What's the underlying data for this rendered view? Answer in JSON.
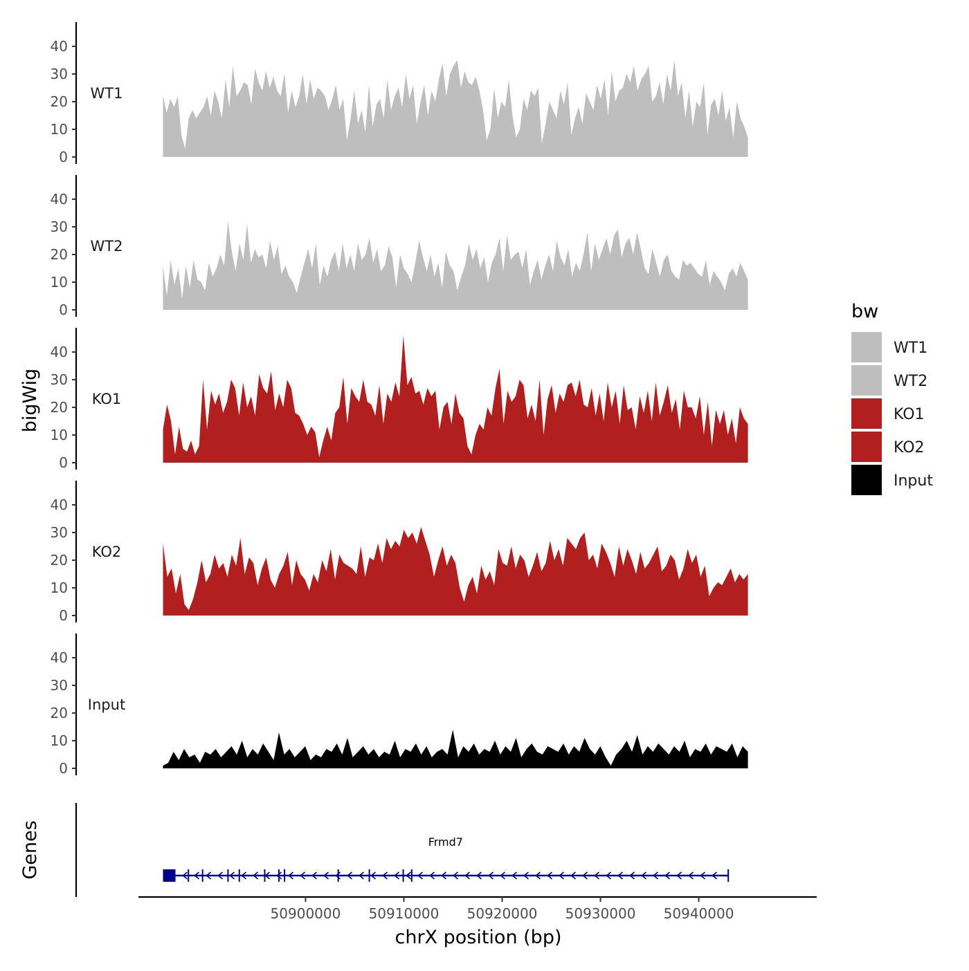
{
  "chart_data": {
    "type": "area",
    "chromosome": "chrX",
    "xlabel": "chrX position (bp)",
    "ylabel": "bigWig",
    "gene_panel_label": "Genes",
    "xlim": [
      50883000,
      50952000
    ],
    "x_ticks": [
      50900000,
      50910000,
      50920000,
      50930000,
      50940000
    ],
    "x_tick_labels": [
      "50900000",
      "50910000",
      "50920000",
      "50930000",
      "50940000"
    ],
    "ylim": [
      0,
      50
    ],
    "y_ticks": [
      0,
      10,
      20,
      30,
      40
    ],
    "y_tick_labels": [
      "0",
      "10",
      "20",
      "30",
      "40"
    ],
    "legend": {
      "title": "bw",
      "position": "right",
      "entries": [
        {
          "label": "WT1",
          "color": "#BEBEBE"
        },
        {
          "label": "WT2",
          "color": "#BEBEBE"
        },
        {
          "label": "KO1",
          "color": "#B21F1F"
        },
        {
          "label": "KO2",
          "color": "#B21F1F"
        },
        {
          "label": "Input",
          "color": "#000000"
        }
      ]
    },
    "track_x_range": [
      50885500,
      50945000
    ],
    "series": [
      {
        "name": "WT1",
        "color": "#BEBEBE",
        "values": [
          22,
          16,
          21,
          18,
          22,
          8,
          3,
          14,
          17,
          14,
          16,
          18,
          22,
          15,
          24,
          20,
          14,
          28,
          18,
          33,
          22,
          24,
          27,
          26,
          19,
          32,
          27,
          24,
          31,
          25,
          29,
          24,
          22,
          30,
          16,
          24,
          18,
          22,
          30,
          19,
          28,
          21,
          25,
          24,
          22,
          17,
          21,
          26,
          17,
          21,
          6,
          14,
          24,
          12,
          17,
          9,
          26,
          11,
          19,
          21,
          14,
          28,
          17,
          22,
          25,
          18,
          30,
          21,
          26,
          12,
          20,
          26,
          15,
          24,
          20,
          28,
          34,
          22,
          30,
          33,
          35,
          25,
          31,
          27,
          26,
          29,
          24,
          17,
          6,
          10,
          25,
          14,
          20,
          18,
          28,
          15,
          7,
          10,
          21,
          17,
          24,
          22,
          25,
          5,
          12,
          20,
          17,
          14,
          24,
          19,
          27,
          8,
          14,
          18,
          12,
          23,
          20,
          17,
          26,
          21,
          28,
          15,
          31,
          20,
          24,
          25,
          30,
          27,
          33,
          24,
          28,
          30,
          33,
          20,
          22,
          27,
          19,
          30,
          24,
          35,
          22,
          27,
          14,
          24,
          11,
          20,
          18,
          27,
          8,
          19,
          21,
          15,
          24,
          13,
          18,
          7,
          20,
          14,
          11,
          7
        ]
      },
      {
        "name": "WT2",
        "color": "#BEBEBE",
        "values": [
          16,
          5,
          18,
          9,
          15,
          4,
          16,
          8,
          18,
          11,
          10,
          7,
          17,
          12,
          15,
          20,
          16,
          32,
          21,
          14,
          24,
          18,
          31,
          17,
          22,
          19,
          20,
          15,
          25,
          18,
          23,
          13,
          16,
          12,
          10,
          6,
          12,
          17,
          22,
          15,
          24,
          9,
          16,
          12,
          18,
          21,
          14,
          24,
          15,
          20,
          14,
          24,
          18,
          20,
          26,
          17,
          22,
          14,
          16,
          23,
          19,
          8,
          20,
          15,
          13,
          10,
          17,
          25,
          19,
          14,
          20,
          12,
          17,
          8,
          21,
          16,
          14,
          7,
          12,
          16,
          24,
          18,
          22,
          15,
          19,
          10,
          17,
          20,
          26,
          14,
          27,
          18,
          20,
          21,
          15,
          22,
          9,
          14,
          18,
          11,
          16,
          20,
          14,
          25,
          19,
          16,
          22,
          12,
          17,
          14,
          20,
          28,
          14,
          24,
          18,
          22,
          26,
          20,
          27,
          29,
          19,
          24,
          26,
          20,
          28,
          22,
          15,
          13,
          22,
          17,
          12,
          18,
          20,
          14,
          12,
          11,
          18,
          16,
          17,
          15,
          13,
          12,
          18,
          9,
          14,
          12,
          10,
          7,
          13,
          15,
          12,
          17,
          14,
          11
        ]
      },
      {
        "name": "KO1",
        "color": "#B21F1F",
        "values": [
          12,
          21,
          15,
          3,
          13,
          5,
          4,
          8,
          3,
          6,
          30,
          12,
          26,
          21,
          25,
          18,
          22,
          30,
          27,
          17,
          29,
          20,
          24,
          17,
          32,
          27,
          25,
          33,
          19,
          25,
          20,
          30,
          27,
          18,
          17,
          14,
          10,
          13,
          11,
          2,
          8,
          13,
          8,
          18,
          20,
          31,
          14,
          27,
          24,
          22,
          30,
          22,
          21,
          17,
          28,
          14,
          25,
          22,
          29,
          24,
          46,
          28,
          31,
          25,
          26,
          21,
          27,
          24,
          26,
          12,
          20,
          22,
          14,
          25,
          18,
          16,
          6,
          3,
          10,
          14,
          12,
          20,
          17,
          27,
          34,
          14,
          26,
          22,
          24,
          30,
          28,
          16,
          21,
          15,
          30,
          10,
          23,
          28,
          18,
          25,
          22,
          28,
          29,
          24,
          30,
          21,
          20,
          27,
          17,
          25,
          15,
          29,
          20,
          26,
          14,
          28,
          19,
          20,
          12,
          24,
          18,
          26,
          15,
          29,
          17,
          22,
          28,
          18,
          23,
          12,
          26,
          20,
          20,
          16,
          24,
          10,
          22,
          6,
          19,
          14,
          19,
          10,
          16,
          7,
          20,
          16,
          14
        ]
      },
      {
        "name": "KO2",
        "color": "#B21F1F",
        "values": [
          26,
          14,
          17,
          8,
          15,
          4,
          2,
          6,
          12,
          20,
          12,
          15,
          22,
          17,
          19,
          14,
          22,
          18,
          28,
          15,
          21,
          19,
          11,
          17,
          21,
          13,
          10,
          15,
          18,
          23,
          11,
          20,
          15,
          13,
          9,
          15,
          12,
          20,
          16,
          24,
          13,
          22,
          19,
          18,
          17,
          15,
          25,
          14,
          21,
          20,
          26,
          19,
          28,
          24,
          27,
          25,
          31,
          28,
          30,
          26,
          32,
          27,
          22,
          14,
          20,
          25,
          18,
          22,
          19,
          10,
          5,
          11,
          14,
          8,
          18,
          13,
          16,
          11,
          24,
          19,
          18,
          25,
          17,
          22,
          20,
          14,
          18,
          23,
          16,
          19,
          27,
          20,
          24,
          18,
          28,
          26,
          24,
          28,
          30,
          20,
          22,
          17,
          26,
          23,
          19,
          14,
          25,
          18,
          24,
          20,
          15,
          23,
          17,
          19,
          22,
          25,
          16,
          18,
          22,
          20,
          13,
          17,
          24,
          19,
          22,
          14,
          18,
          7,
          10,
          12,
          11,
          14,
          17,
          12,
          15,
          13,
          15
        ]
      },
      {
        "name": "Input",
        "color": "#000000",
        "values": [
          1,
          2,
          6,
          3,
          7,
          4,
          5,
          2,
          6,
          5,
          7,
          4,
          6,
          8,
          5,
          10,
          4,
          7,
          5,
          9,
          6,
          3,
          13,
          5,
          7,
          4,
          6,
          8,
          3,
          5,
          4,
          7,
          6,
          9,
          5,
          11,
          4,
          6,
          8,
          5,
          7,
          4,
          6,
          5,
          10,
          4,
          7,
          6,
          9,
          5,
          8,
          4,
          6,
          7,
          5,
          14,
          4,
          8,
          6,
          9,
          5,
          7,
          6,
          10,
          5,
          8,
          6,
          11,
          4,
          7,
          9,
          6,
          5,
          8,
          7,
          6,
          9,
          5,
          8,
          6,
          11,
          7,
          5,
          8,
          4,
          1,
          5,
          7,
          10,
          6,
          12,
          5,
          8,
          6,
          9,
          7,
          5,
          8,
          6,
          10,
          4,
          7,
          6,
          9,
          5,
          8,
          7,
          6,
          9,
          4,
          8,
          6
        ]
      }
    ],
    "gene": {
      "name": "Frmd7",
      "strand": "-",
      "start": 50885500,
      "end": 50943000,
      "color": "#00008B"
    }
  }
}
